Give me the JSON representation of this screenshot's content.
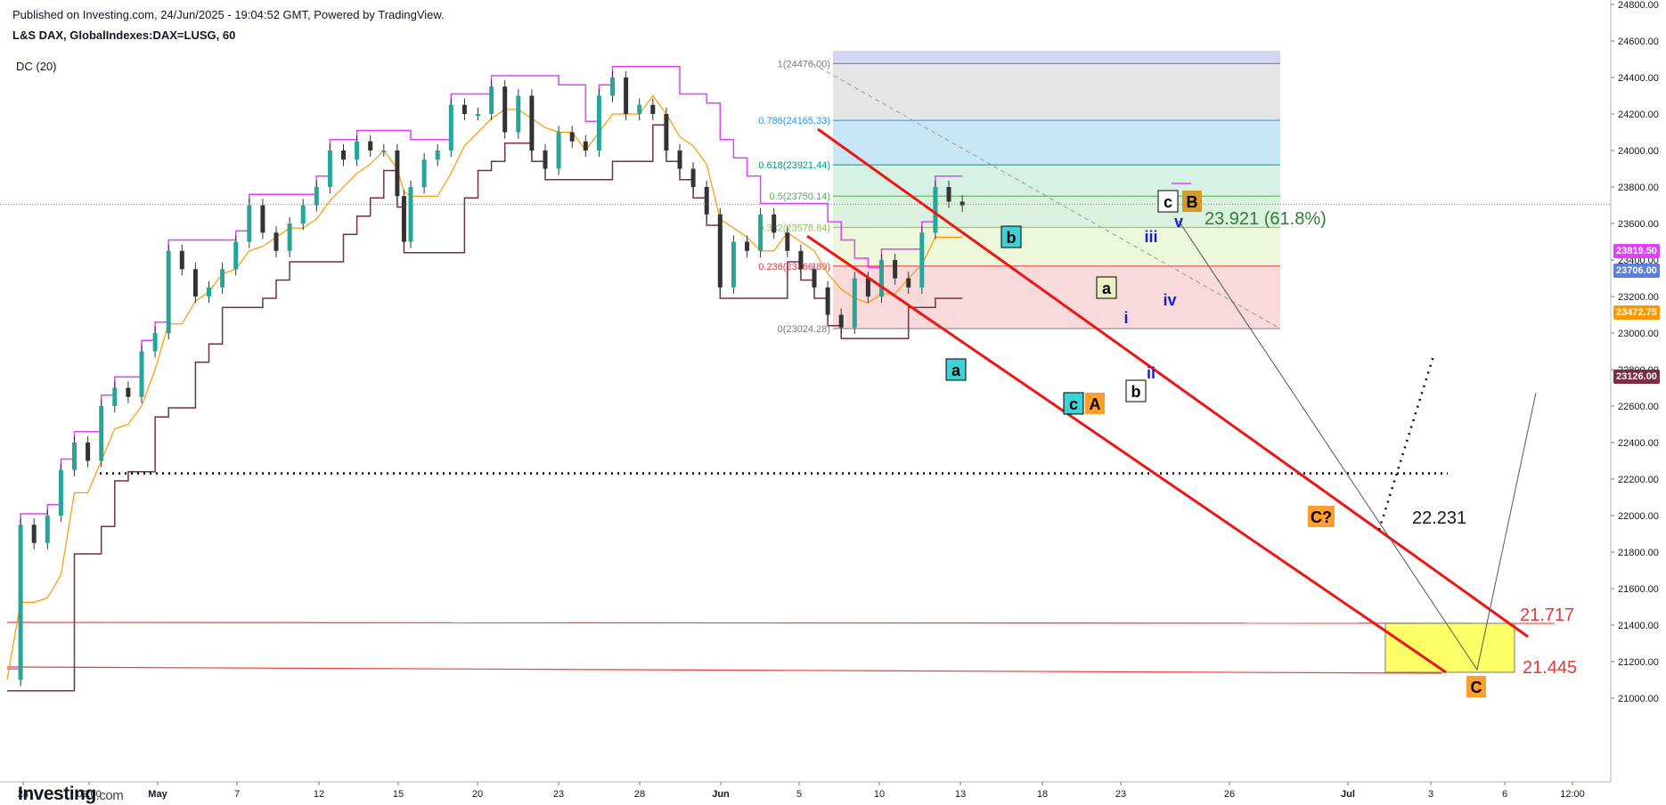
{
  "header": {
    "published": "Published on Investing.com, 24/Jun/2025 - 19:04:52 GMT, Powered by TradingView.",
    "symbol": "L&S DAX, GlobalIndexes:DAX=LUSG, 60",
    "indicator": "DC (20)"
  },
  "logo": {
    "name": "Investing",
    "suffix": ".com"
  },
  "price_tags": [
    {
      "value": "23819.50",
      "color": "#e040fb"
    },
    {
      "value": "23706.00",
      "color": "#5b7fe0"
    },
    {
      "value": "23472.75",
      "color": "#ff9800"
    },
    {
      "value": "23126.00",
      "color": "#7b2d48"
    }
  ],
  "chart_data": {
    "type": "line",
    "y_axis": {
      "ticks": [
        24800,
        24600,
        24400,
        24200,
        24000,
        23800,
        23600,
        23400,
        23200,
        23000,
        22800,
        22600,
        22400,
        22200,
        22000,
        21800,
        21600,
        21400,
        21200,
        21000
      ],
      "tick_labels": [
        "24800.00",
        "24600.00",
        "24400.00",
        "24200.00",
        "24000.00",
        "23800.00",
        "23600.00",
        "23400.00",
        "23200.00",
        "23000.00",
        "22800.00",
        "22600.00",
        "22400.00",
        "22200.00",
        "22000.00",
        "21800.00",
        "21600.00",
        "21400.00",
        "21200.00",
        "21000.00"
      ]
    },
    "x_axis": {
      "tick_labels": [
        "24",
        "09:00",
        "May",
        "7",
        "12",
        "15",
        "20",
        "23",
        "28",
        "Jun",
        "5",
        "10",
        "13",
        "18",
        "23",
        "26",
        "Jul",
        "3",
        "6",
        "12:00"
      ]
    },
    "price_path": [
      [
        0,
        21100
      ],
      [
        2,
        21950
      ],
      [
        4,
        21850
      ],
      [
        6,
        22000
      ],
      [
        8,
        22250
      ],
      [
        10,
        22400
      ],
      [
        12,
        22300
      ],
      [
        14,
        22600
      ],
      [
        16,
        22700
      ],
      [
        18,
        22650
      ],
      [
        20,
        22900
      ],
      [
        22,
        23000
      ],
      [
        24,
        23450
      ],
      [
        26,
        23350
      ],
      [
        28,
        23200
      ],
      [
        30,
        23250
      ],
      [
        32,
        23350
      ],
      [
        34,
        23500
      ],
      [
        36,
        23700
      ],
      [
        38,
        23550
      ],
      [
        40,
        23450
      ],
      [
        42,
        23600
      ],
      [
        44,
        23700
      ],
      [
        46,
        23800
      ],
      [
        48,
        24000
      ],
      [
        50,
        23950
      ],
      [
        52,
        24050
      ],
      [
        54,
        24000
      ],
      [
        56,
        24000
      ],
      [
        58,
        23750
      ],
      [
        59,
        23500
      ],
      [
        60,
        23800
      ],
      [
        62,
        23950
      ],
      [
        64,
        24000
      ],
      [
        66,
        24250
      ],
      [
        68,
        24200
      ],
      [
        70,
        24200
      ],
      [
        72,
        24350
      ],
      [
        74,
        24100
      ],
      [
        76,
        24300
      ],
      [
        78,
        24000
      ],
      [
        80,
        23900
      ],
      [
        82,
        24100
      ],
      [
        84,
        24050
      ],
      [
        86,
        24000
      ],
      [
        88,
        24300
      ],
      [
        90,
        24400
      ],
      [
        92,
        24200
      ],
      [
        94,
        24250
      ],
      [
        96,
        24200
      ],
      [
        98,
        24000
      ],
      [
        100,
        23900
      ],
      [
        102,
        23800
      ],
      [
        104,
        23650
      ],
      [
        106,
        23250
      ],
      [
        108,
        23500
      ],
      [
        110,
        23450
      ],
      [
        112,
        23650
      ],
      [
        114,
        23550
      ],
      [
        116,
        23450
      ],
      [
        118,
        23350
      ],
      [
        120,
        23250
      ],
      [
        122,
        23100
      ],
      [
        124,
        23030
      ],
      [
        126,
        23300
      ],
      [
        128,
        23200
      ],
      [
        130,
        23400
      ],
      [
        132,
        23300
      ],
      [
        134,
        23250
      ],
      [
        136,
        23550
      ],
      [
        138,
        23800
      ],
      [
        140,
        23720
      ],
      [
        142,
        23700
      ]
    ],
    "fibonacci": [
      {
        "level": "1",
        "price": 24476.0,
        "label": "1(24476.00)",
        "color": "#787b86"
      },
      {
        "level": "0.786",
        "price": 24165.33,
        "label": "0.786(24165.33)",
        "color": "#2196f3"
      },
      {
        "level": "0.618",
        "price": 23921.44,
        "label": "0.618(23921.44)",
        "color": "#089981"
      },
      {
        "level": "0.5",
        "price": 23750.14,
        "label": "0.5(23750.14)",
        "color": "#4caf50"
      },
      {
        "level": "0.382",
        "price": 23578.84,
        "label": "0.382(23578.84)",
        "color": "#8bc34a"
      },
      {
        "level": "0.236",
        "price": 23366.89,
        "label": "0.236(23366.89)",
        "color": "#f23645"
      },
      {
        "level": "0",
        "price": 23024.28,
        "label": "0(23024.28)",
        "color": "#787b86"
      }
    ],
    "target_levels": [
      {
        "label": "22.231",
        "price": 22231
      },
      {
        "label": "21.717",
        "price": 21717
      },
      {
        "label": "21.445",
        "price": 21445
      }
    ],
    "retracement_note": "23.921 (61.8%)",
    "wave_labels": [
      {
        "text": "a",
        "style": "teal-box"
      },
      {
        "text": "b",
        "style": "teal-box"
      },
      {
        "text": "c",
        "style": "teal-box"
      },
      {
        "text": "A",
        "style": "orange-box"
      },
      {
        "text": "a",
        "style": "olive-box"
      },
      {
        "text": "b",
        "style": "white-box"
      },
      {
        "text": "c",
        "style": "white-box"
      },
      {
        "text": "B",
        "style": "gold-box"
      },
      {
        "text": "C?",
        "style": "orange-box"
      },
      {
        "text": "C",
        "style": "orange-box"
      },
      {
        "text": "i",
        "style": "blue-text"
      },
      {
        "text": "ii",
        "style": "blue-text"
      },
      {
        "text": "iii",
        "style": "blue-text"
      },
      {
        "text": "iv",
        "style": "blue-text"
      },
      {
        "text": "v",
        "style": "blue-text"
      }
    ],
    "colors": {
      "candle_up": "#26a69a",
      "candle_down": "#333333",
      "donchian_upper": "#e040fb",
      "donchian_mid": "#ff9800",
      "donchian_lower": "#7b2d48",
      "channel": "#f01414",
      "target_box": "#ffff66",
      "last_price_line": "#5b7fe0"
    }
  }
}
